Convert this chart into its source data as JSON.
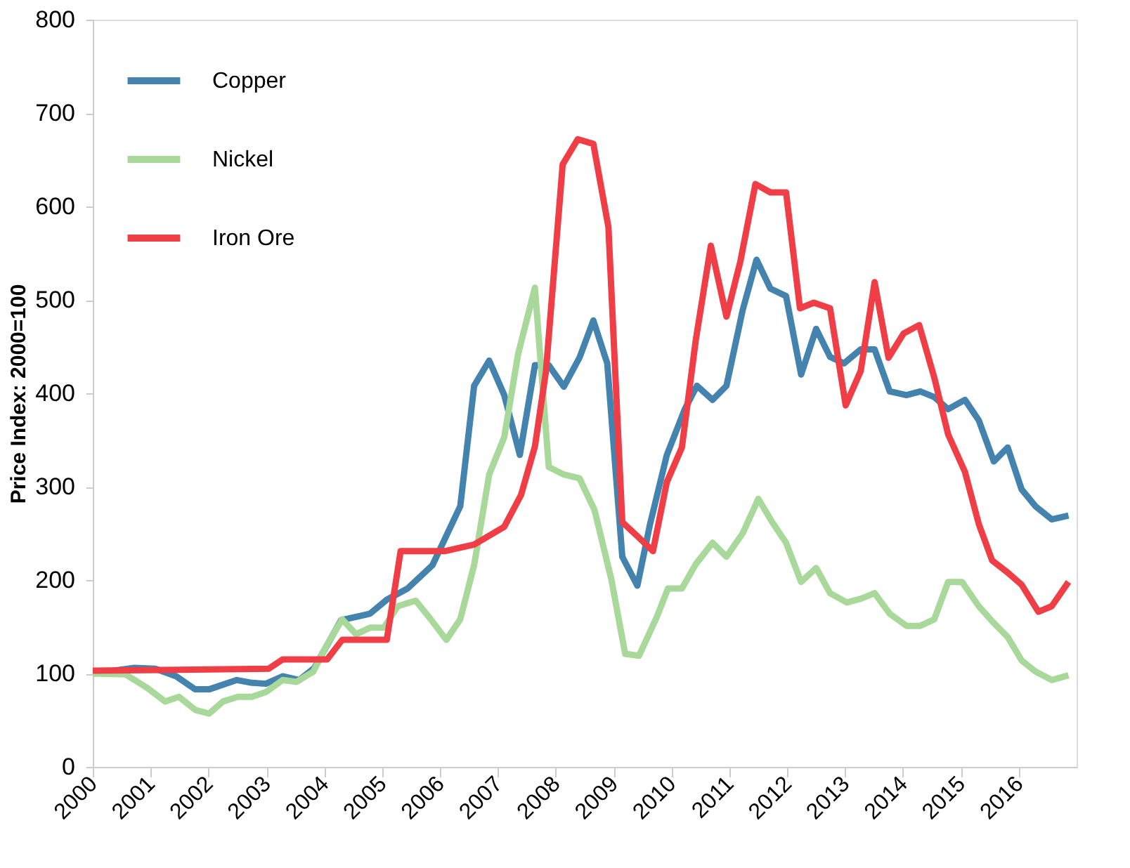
{
  "chart_data": {
    "type": "line",
    "ylabel": "Price Index: 2000=100",
    "xlim": [
      2000,
      2017
    ],
    "xticks": [
      2000,
      2001,
      2002,
      2003,
      2004,
      2005,
      2006,
      2007,
      2008,
      2009,
      2010,
      2011,
      2012,
      2013,
      2014,
      2015,
      2016
    ],
    "ylim": [
      0,
      800
    ],
    "yticks": [
      0,
      100,
      200,
      300,
      400,
      500,
      600,
      700,
      800
    ],
    "grid": false,
    "legend": "top left",
    "marker": "none",
    "line_style": "solid",
    "series": [
      {
        "name": "Copper",
        "color": "#4383ad",
        "x": [
          2000.0,
          2000.72,
          2001.08,
          2001.44,
          2001.77,
          2002.01,
          2002.49,
          2002.75,
          2002.99,
          2003.28,
          2003.57,
          2003.83,
          2004.29,
          2004.79,
          2005.08,
          2005.44,
          2005.87,
          2006.35,
          2006.59,
          2006.85,
          2007.11,
          2007.38,
          2007.64,
          2007.88,
          2008.14,
          2008.41,
          2008.65,
          2008.89,
          2009.15,
          2009.41,
          2009.63,
          2009.92,
          2010.23,
          2010.44,
          2010.71,
          2010.95,
          2011.23,
          2011.47,
          2011.71,
          2011.98,
          2012.24,
          2012.5,
          2012.74,
          2012.98,
          2013.27,
          2013.51,
          2013.77,
          2014.06,
          2014.3,
          2014.54,
          2014.78,
          2015.07,
          2015.31,
          2015.57,
          2015.81,
          2016.05,
          2016.29,
          2016.57,
          2016.86
        ],
        "values": [
          100,
          106,
          105,
          97,
          83,
          83,
          93,
          90,
          89,
          97,
          93,
          106,
          157,
          164,
          179,
          191,
          216,
          279,
          408,
          435,
          398,
          334,
          430,
          430,
          407,
          438,
          478,
          432,
          225,
          194,
          260,
          334,
          383,
          408,
          393,
          408,
          489,
          543,
          512,
          504,
          420,
          469,
          439,
          432,
          447,
          447,
          402,
          398,
          402,
          396,
          383,
          393,
          371,
          327,
          342,
          297,
          279,
          265,
          269
        ]
      },
      {
        "name": "Nickel",
        "color": "#a8d89a",
        "x": [
          2000.0,
          2000.57,
          2000.93,
          2001.25,
          2001.49,
          2001.77,
          2002.01,
          2002.25,
          2002.51,
          2002.75,
          2002.99,
          2003.28,
          2003.52,
          2003.81,
          2004.05,
          2004.31,
          2004.55,
          2004.79,
          2005.03,
          2005.27,
          2005.58,
          2005.84,
          2006.11,
          2006.35,
          2006.59,
          2006.85,
          2007.11,
          2007.35,
          2007.64,
          2007.88,
          2008.14,
          2008.41,
          2008.67,
          2008.96,
          2009.2,
          2009.44,
          2009.75,
          2009.94,
          2010.18,
          2010.42,
          2010.71,
          2010.95,
          2011.23,
          2011.5,
          2011.74,
          2011.98,
          2012.24,
          2012.5,
          2012.74,
          2013.03,
          2013.27,
          2013.51,
          2013.77,
          2014.06,
          2014.3,
          2014.54,
          2014.78,
          2015.02,
          2015.31,
          2015.57,
          2015.81,
          2016.05,
          2016.29,
          2016.57,
          2016.86
        ],
        "values": [
          100,
          99,
          85,
          70,
          75,
          61,
          57,
          70,
          75,
          75,
          80,
          93,
          91,
          102,
          131,
          158,
          142,
          149,
          149,
          172,
          178,
          158,
          136,
          158,
          216,
          313,
          353,
          442,
          513,
          321,
          313,
          309,
          275,
          201,
          121,
          119,
          161,
          191,
          191,
          217,
          240,
          225,
          250,
          287,
          262,
          240,
          198,
          213,
          186,
          176,
          180,
          186,
          164,
          151,
          151,
          158,
          198,
          198,
          172,
          154,
          139,
          114,
          102,
          93,
          98
        ]
      },
      {
        "name": "Iron Ore",
        "color": "#ef3e46",
        "x": [
          2000.0,
          2003.04,
          2003.28,
          2004.05,
          2004.31,
          2005.08,
          2005.32,
          2006.08,
          2006.59,
          2007.11,
          2007.4,
          2007.64,
          2007.83,
          2008.12,
          2008.38,
          2008.65,
          2008.91,
          2009.15,
          2009.41,
          2009.68,
          2009.92,
          2010.18,
          2010.42,
          2010.68,
          2010.95,
          2011.19,
          2011.45,
          2011.71,
          2011.98,
          2012.22,
          2012.46,
          2012.74,
          2013.01,
          2013.27,
          2013.51,
          2013.75,
          2014.01,
          2014.28,
          2014.54,
          2014.78,
          2015.07,
          2015.31,
          2015.54,
          2015.81,
          2016.05,
          2016.34,
          2016.57,
          2016.86
        ],
        "values": [
          103,
          105,
          115,
          115,
          136,
          136,
          231,
          231,
          238,
          257,
          291,
          343,
          423,
          645,
          672,
          667,
          578,
          262,
          247,
          231,
          305,
          342,
          457,
          558,
          482,
          541,
          624,
          615,
          615,
          491,
          497,
          491,
          387,
          424,
          519,
          438,
          464,
          473,
          417,
          356,
          316,
          260,
          221,
          208,
          195,
          166,
          172,
          198
        ]
      }
    ]
  }
}
